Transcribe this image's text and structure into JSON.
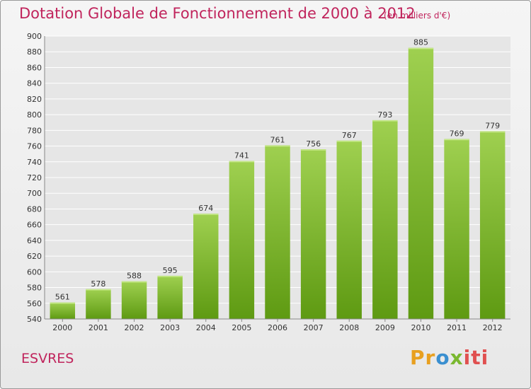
{
  "header": {
    "title": "Dotation Globale de Fonctionnement de 2000 à 2012",
    "subtitle": "(en milliers d'€)"
  },
  "footer": {
    "commune": "ESVRES",
    "logo_parts": [
      "Pr",
      "o",
      "x",
      "iti"
    ]
  },
  "colors": {
    "title": "#c0245c",
    "bar_top": "#9fd050",
    "bar_bottom": "#5e9a12",
    "grid": "#ffffff",
    "background": "#ebebeb"
  },
  "chart_data": {
    "type": "bar",
    "title": "Dotation Globale de Fonctionnement de 2000 à 2012",
    "subtitle": "(en milliers d'€)",
    "categories": [
      "2000",
      "2001",
      "2002",
      "2003",
      "2004",
      "2005",
      "2006",
      "2007",
      "2008",
      "2009",
      "2010",
      "2011",
      "2012"
    ],
    "values": [
      561,
      578,
      588,
      595,
      674,
      741,
      761,
      756,
      767,
      793,
      885,
      769,
      779
    ],
    "ylim": [
      540,
      900
    ],
    "yticks": [
      540,
      560,
      580,
      600,
      620,
      640,
      660,
      680,
      700,
      720,
      740,
      760,
      780,
      800,
      820,
      840,
      860,
      880,
      900
    ],
    "grid": true,
    "data_labels": true
  }
}
